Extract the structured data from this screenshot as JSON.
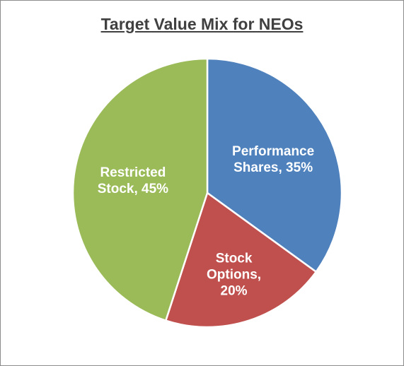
{
  "chart_data": {
    "type": "pie",
    "title": "Target Value Mix for NEOs",
    "values": [
      35,
      20,
      45
    ],
    "value_labels": [
      "Performance Shares, 35%",
      "Stock Options, 20%",
      "Restricted Stock, 45%"
    ],
    "colors": [
      "#4f81bd",
      "#c0504d",
      "#9bbb59"
    ]
  }
}
